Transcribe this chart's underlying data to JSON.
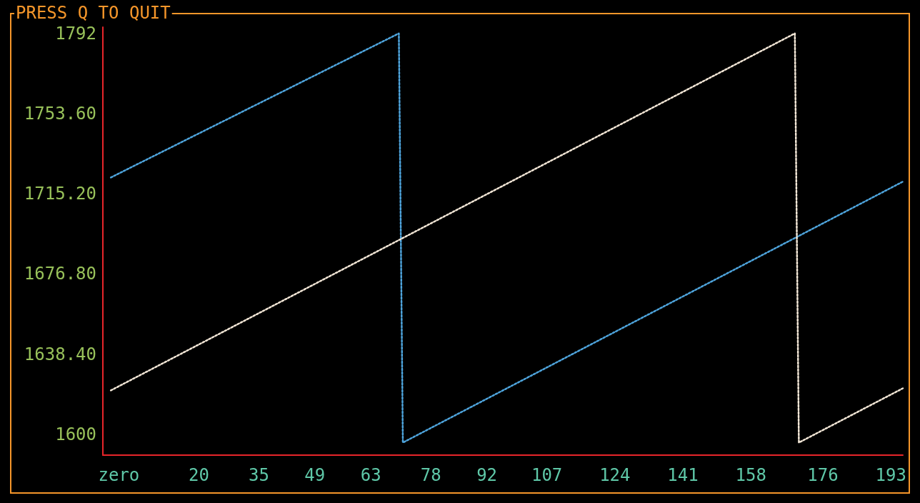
{
  "chart_data": {
    "type": "line",
    "title": "PRESS Q TO QUIT",
    "line_style": "dotted",
    "xlim": [
      -4,
      196
    ],
    "xticks": [
      {
        "value": 0,
        "label": "zero"
      },
      20,
      35,
      49,
      63,
      78,
      92,
      107,
      124,
      141,
      158,
      176,
      193
    ],
    "ylim": [
      1590,
      1795
    ],
    "yticks": [
      1600,
      {
        "value": 1638.4,
        "label": "1638.40"
      },
      {
        "value": 1676.8,
        "label": "1676.80"
      },
      {
        "value": 1715.2,
        "label": "1715.20"
      },
      {
        "value": 1753.6,
        "label": "1753.60"
      },
      1792
    ],
    "series": [
      {
        "color": "#4ea4dc",
        "x": [
          -2,
          70,
          71,
          170,
          196
        ],
        "values": [
          1723,
          1792,
          1596,
          1695,
          1721
        ]
      },
      {
        "color": "#f2e6d6",
        "x": [
          -2,
          70,
          169,
          170,
          196
        ],
        "values": [
          1621,
          1693,
          1792,
          1596,
          1622
        ]
      }
    ]
  }
}
